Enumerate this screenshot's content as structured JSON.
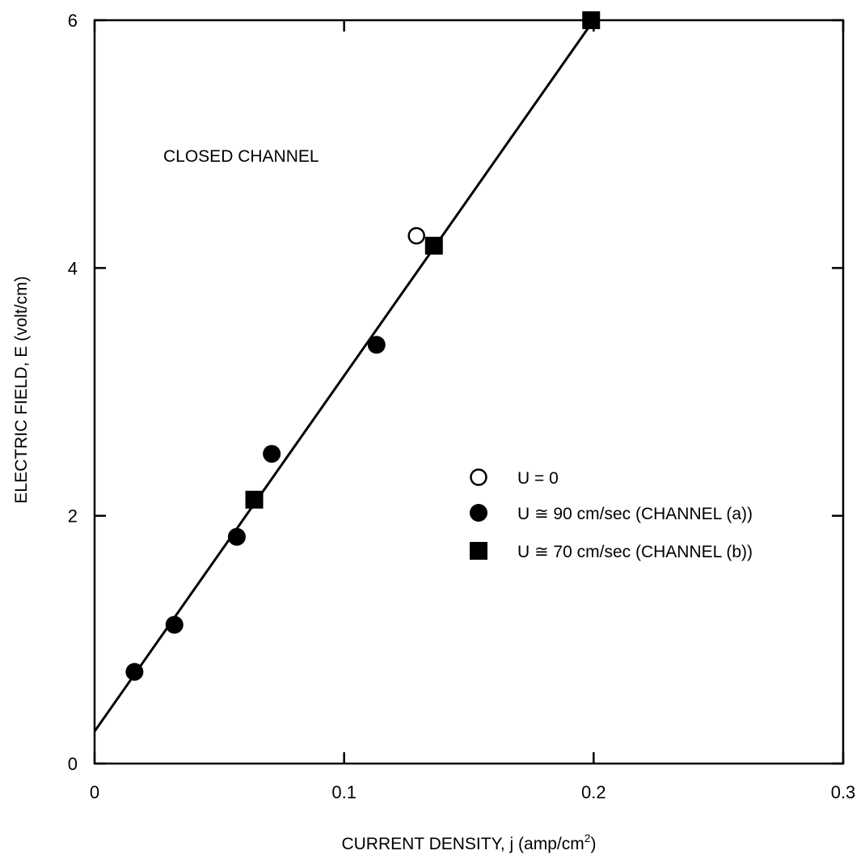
{
  "chart_data": {
    "type": "scatter",
    "title": "",
    "annotation": "CLOSED CHANNEL",
    "xlabel": "CURRENT DENSITY, j (amp/cm",
    "xlabel_sup": "2",
    "xlabel_tail": ")",
    "ylabel": "ELECTRIC FIELD, E (volt/cm)",
    "xlim": [
      0,
      0.3
    ],
    "ylim": [
      0,
      6
    ],
    "x_ticks": [
      0,
      0.1,
      0.2,
      0.3
    ],
    "x_tick_labels": [
      "0",
      "0.1",
      "0.2",
      "0.3"
    ],
    "y_ticks": [
      0,
      2,
      4,
      6
    ],
    "y_tick_labels": [
      "0",
      "2",
      "4",
      "6"
    ],
    "grid": false,
    "legend_position": "right-center",
    "series": [
      {
        "name": "U = 0",
        "marker": "open-circle",
        "points": [
          {
            "x": 0.129,
            "y": 4.26
          }
        ]
      },
      {
        "name": "U ≅ 90 cm/sec (CHANNEL (a))",
        "marker": "filled-circle",
        "points": [
          {
            "x": 0.016,
            "y": 0.74
          },
          {
            "x": 0.032,
            "y": 1.12
          },
          {
            "x": 0.057,
            "y": 1.83
          },
          {
            "x": 0.071,
            "y": 2.5
          },
          {
            "x": 0.113,
            "y": 3.38
          }
        ]
      },
      {
        "name": "U ≅ 70 cm/sec (CHANNEL (b))",
        "marker": "filled-square",
        "points": [
          {
            "x": 0.064,
            "y": 2.13
          },
          {
            "x": 0.136,
            "y": 4.18
          },
          {
            "x": 0.199,
            "y": 6.0
          }
        ]
      }
    ],
    "fit_line": {
      "points": [
        {
          "x": 0,
          "y": 0.26
        },
        {
          "x": 0.2,
          "y": 6.0
        }
      ]
    }
  }
}
